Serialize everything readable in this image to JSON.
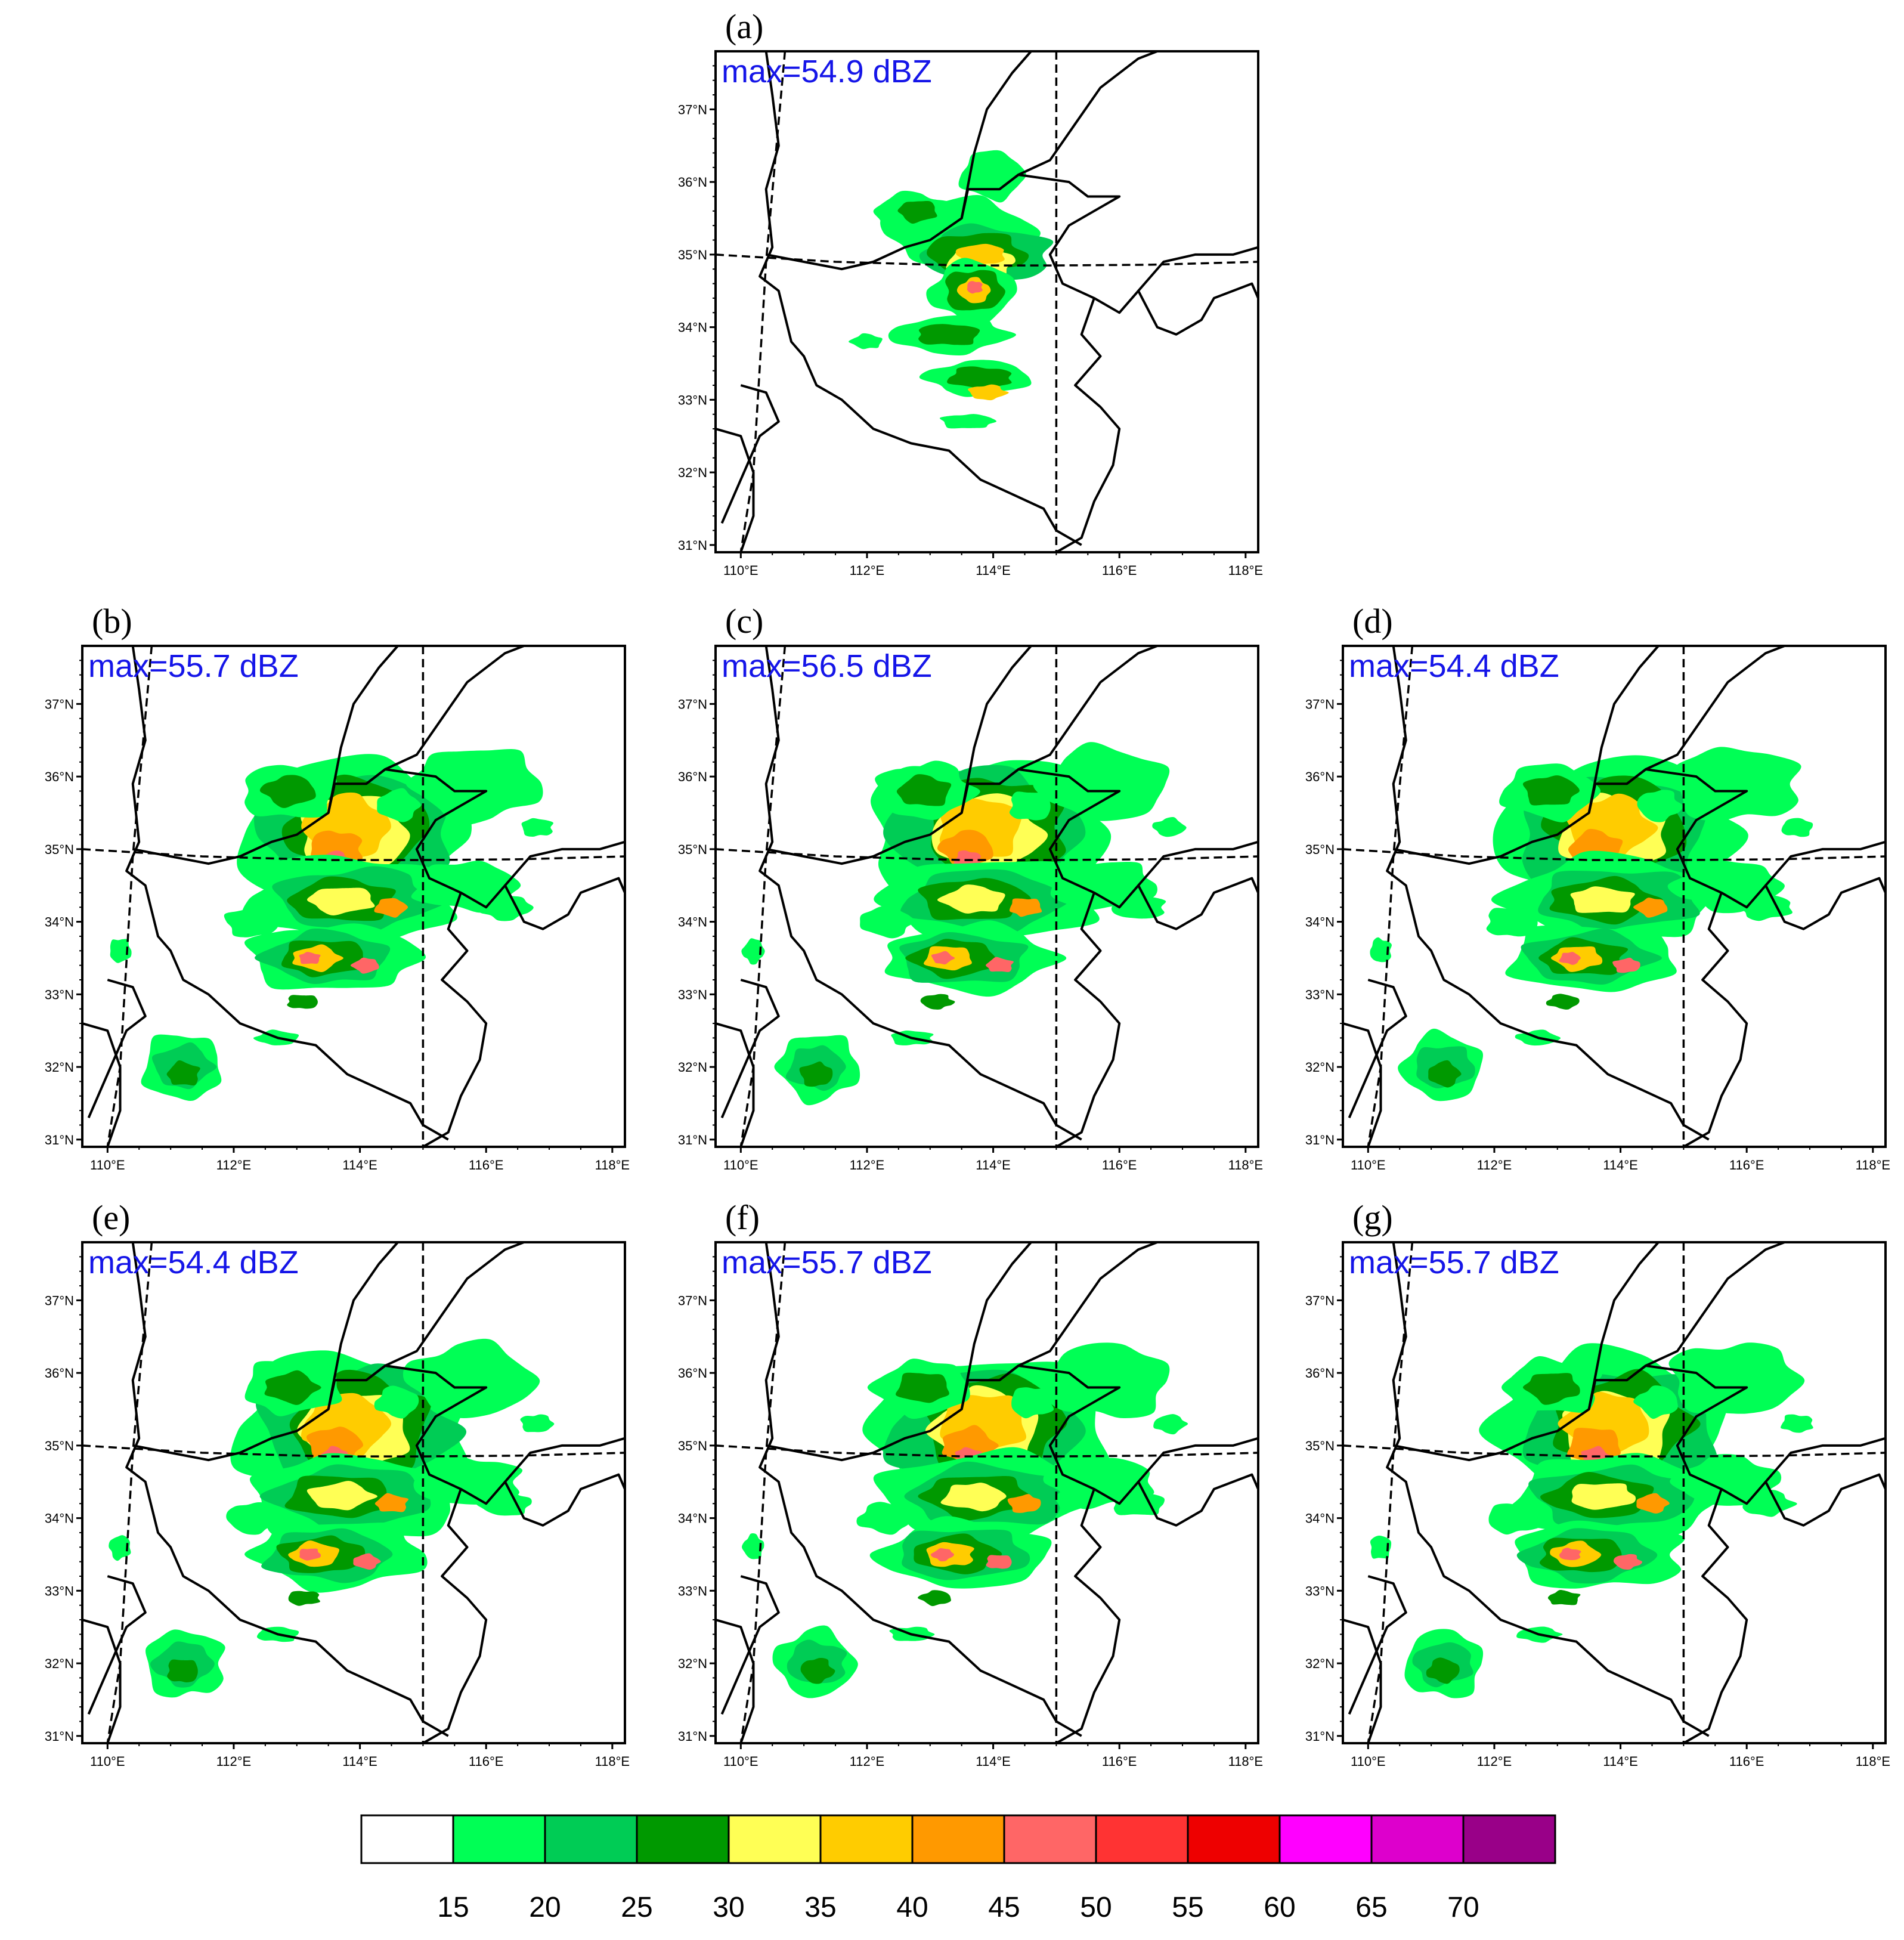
{
  "axes": {
    "x_ticks": [
      "110°E",
      "112°E",
      "114°E",
      "116°E",
      "118°E"
    ],
    "y_ticks": [
      "31°N",
      "32°N",
      "33°N",
      "34°N",
      "35°N",
      "36°N",
      "37°N"
    ]
  },
  "panels": [
    {
      "label": "(a)",
      "max": "max=54.9 dBZ",
      "variant": "obs"
    },
    {
      "label": "(b)",
      "max": "max=55.7 dBZ",
      "variant": "model"
    },
    {
      "label": "(c)",
      "max": "max=56.5 dBZ",
      "variant": "model"
    },
    {
      "label": "(d)",
      "max": "max=54.4 dBZ",
      "variant": "model"
    },
    {
      "label": "(e)",
      "max": "max=54.4 dBZ",
      "variant": "model"
    },
    {
      "label": "(f)",
      "max": "max=55.7 dBZ",
      "variant": "model"
    },
    {
      "label": "(g)",
      "max": "max=55.7 dBZ",
      "variant": "model"
    }
  ],
  "colorbar": {
    "colors": [
      "#ffffff",
      "#00ff55",
      "#00cc55",
      "#009900",
      "#ffff55",
      "#ffcc00",
      "#ff9900",
      "#ff6666",
      "#ff3333",
      "#ee0000",
      "#ff00ff",
      "#dd00cc",
      "#990088"
    ],
    "labels": [
      "15",
      "20",
      "25",
      "30",
      "35",
      "40",
      "45",
      "50",
      "55",
      "60",
      "65",
      "70"
    ]
  }
}
